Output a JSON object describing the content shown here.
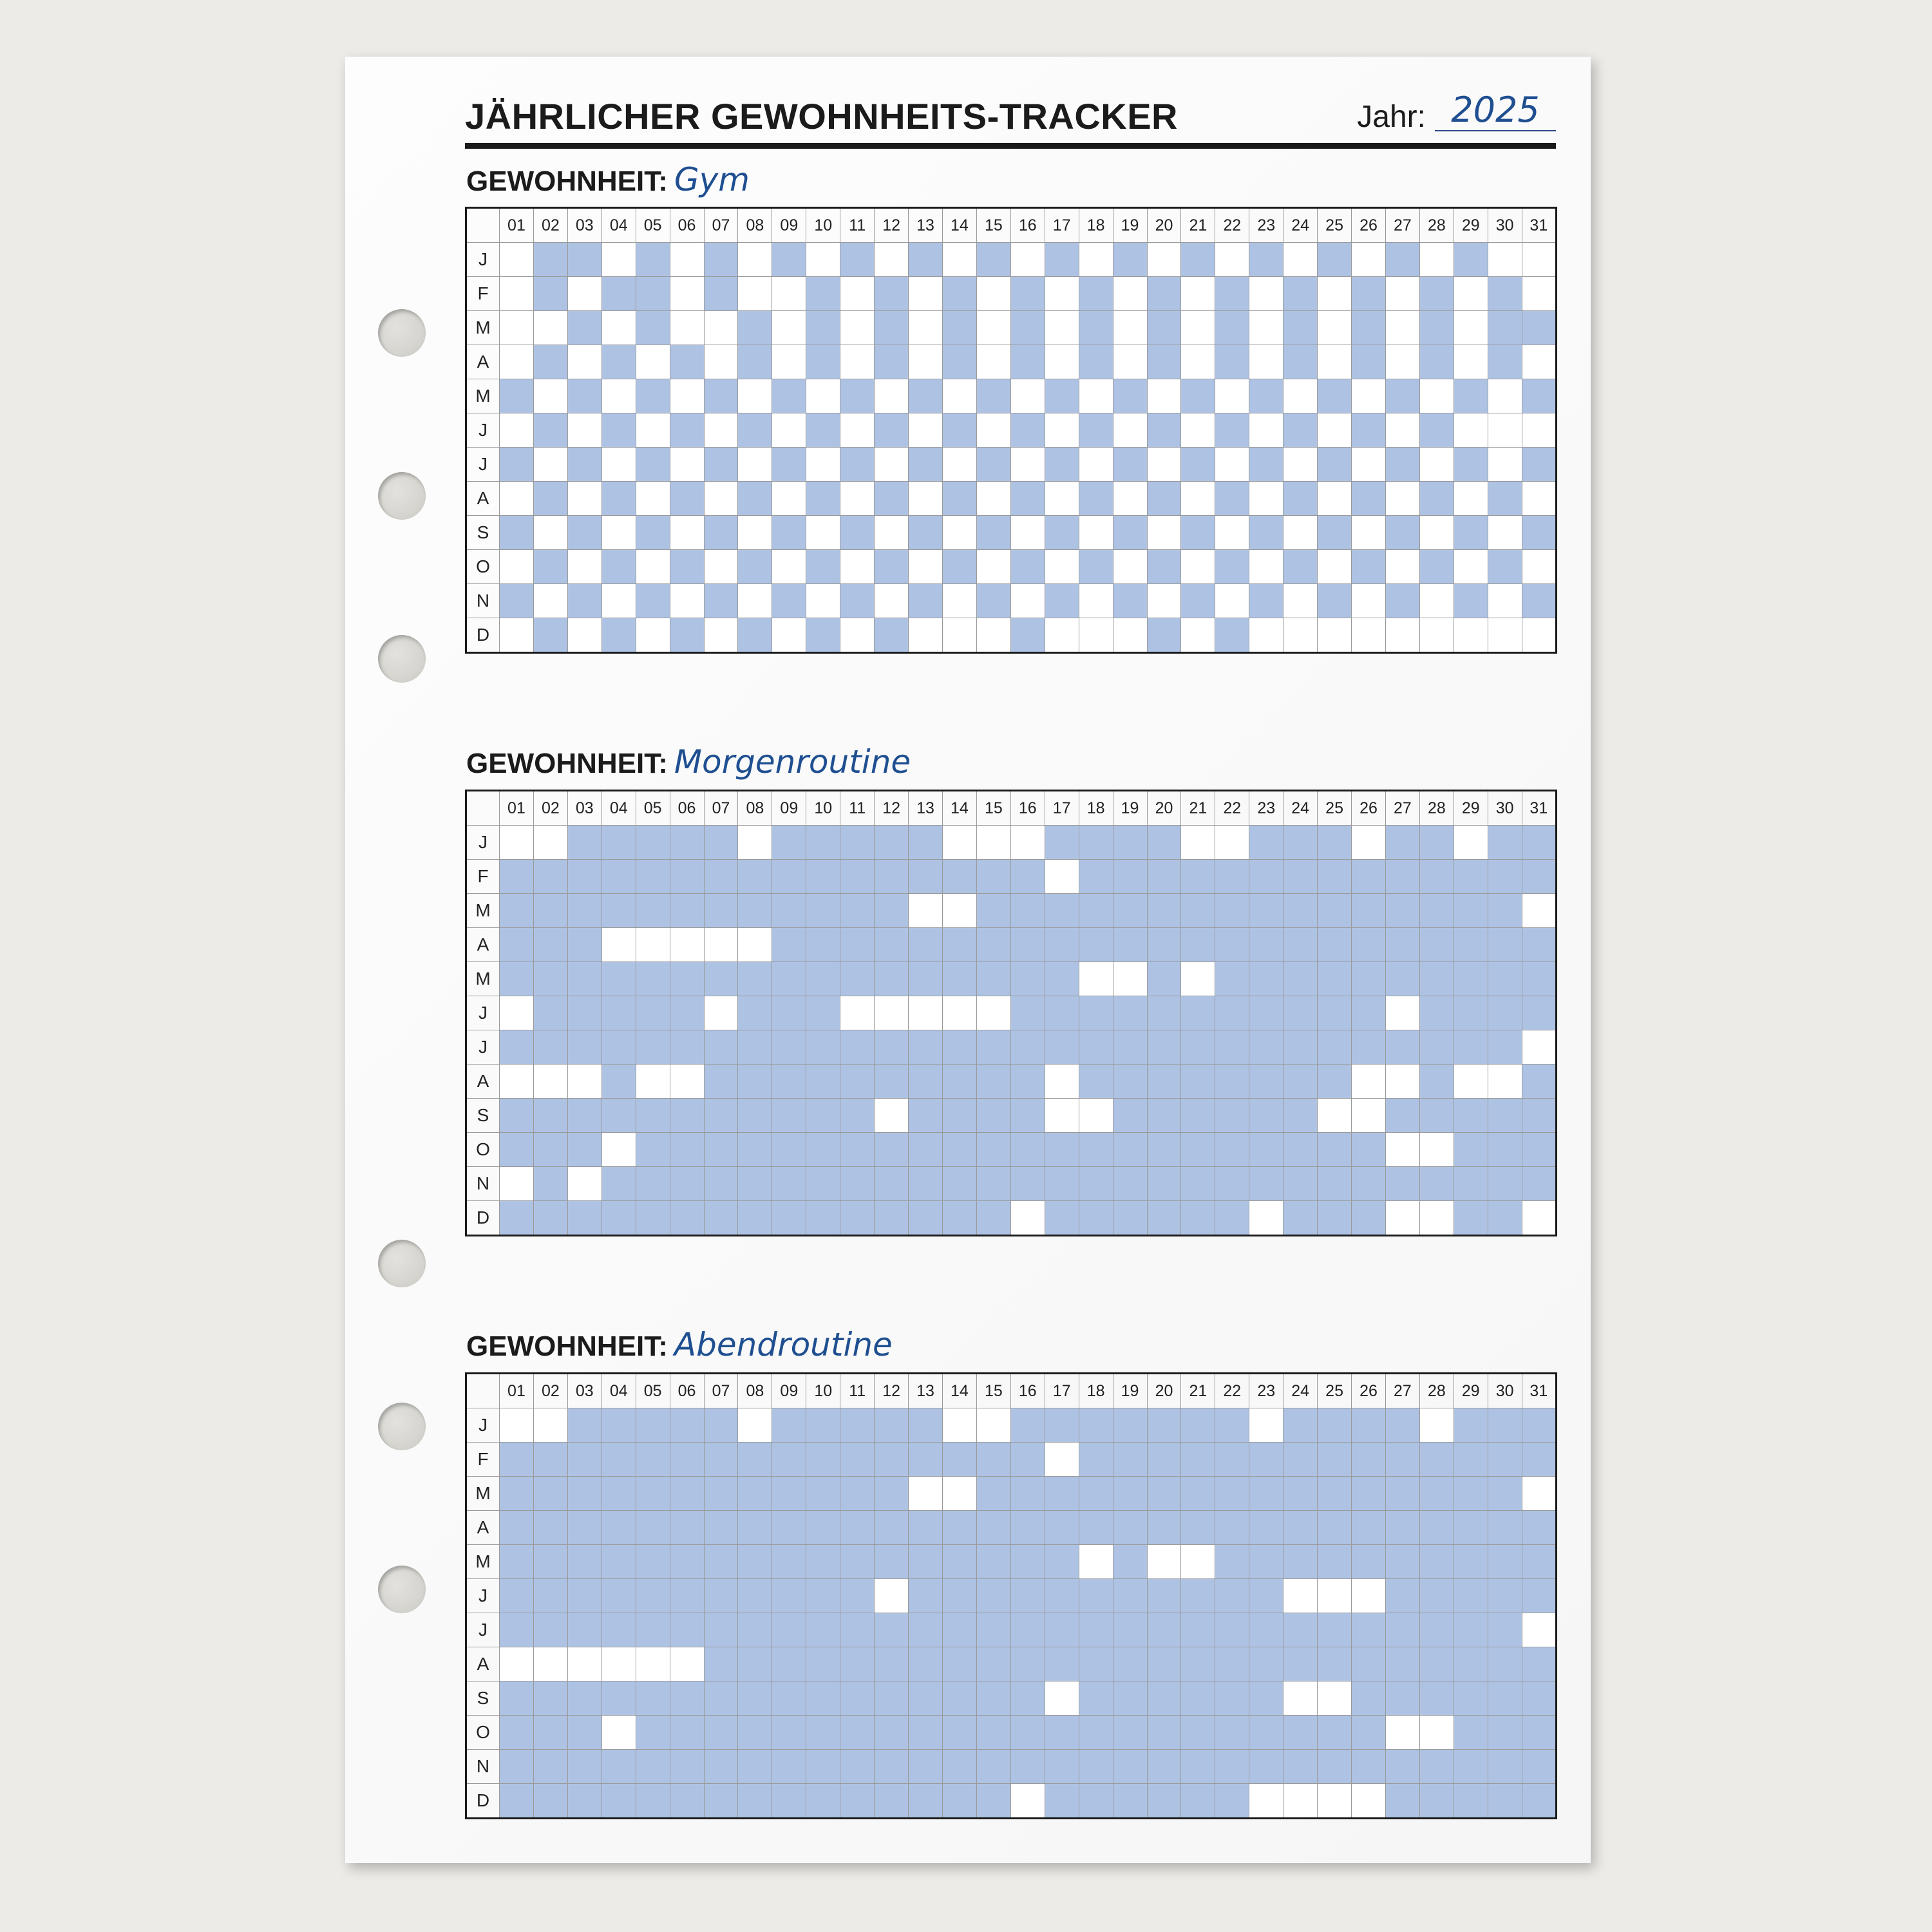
{
  "header": {
    "title": "JÄHRLICHER GEWOHNHEITS-TRACKER",
    "year_label": "Jahr:",
    "year": "2025"
  },
  "days": [
    "01",
    "02",
    "03",
    "04",
    "05",
    "06",
    "07",
    "08",
    "09",
    "10",
    "11",
    "12",
    "13",
    "14",
    "15",
    "16",
    "17",
    "18",
    "19",
    "20",
    "21",
    "22",
    "23",
    "24",
    "25",
    "26",
    "27",
    "28",
    "29",
    "30",
    "31"
  ],
  "months": [
    "J",
    "F",
    "M",
    "A",
    "M",
    "J",
    "J",
    "A",
    "S",
    "O",
    "N",
    "D"
  ],
  "habit_label": "GEWOHNHEIT:",
  "colors": {
    "filled": "#aec3e4",
    "empty": "#ffffff",
    "accent": "#1f4f91"
  },
  "trackers": [
    {
      "habit": "Gym",
      "grid": [
        "0110101010101010101010101010100",
        "0101101001010101010101010101010",
        "0010100101010101010101010101011",
        "0101010101010101010101010101010",
        "1010101010101010101010101010101",
        "0101010101010101010101010101000",
        "1010101010101010101010101010101",
        "0101010101010101010101010101010",
        "1010101010101010101010101010101",
        "0101010101010101010101010101010",
        "1010101010101010101010101010101",
        "0101010101010001000101000000000"
      ]
    },
    {
      "habit": "Morgenroutine",
      "grid": [
        "0011111011111000111100111011011",
        "1111111111111111011111111111111",
        "1111111111110011111111111111110",
        "1110000011111111111111111111111",
        "1111111111111111100101111111111",
        "0111110111000001111111111101111",
        "1111111111111111111111111111110",
        "0001001111111111011111111001001",
        "1111111111101111001111110011111",
        "1110111111111111111111111100111",
        "0101111111111111111111111111111",
        "1111111111111110111111011100110"
      ]
    },
    {
      "habit": "Abendroutine",
      "grid": [
        "0011111011111001111111011110111",
        "1111111111111111011111111111111",
        "1111111111110011111111111111110",
        "1111111111111111111111111111111",
        "1111111111111111101001111111111",
        "1111111111101111111111100011111",
        "1111111111111111111111111111110",
        "0000001111111111111111111111111",
        "1111111111111111011111100111111",
        "1110111111111111111111111100111",
        "1111111111111111111111111111111",
        "1111111111111110111111000011111"
      ]
    }
  ]
}
